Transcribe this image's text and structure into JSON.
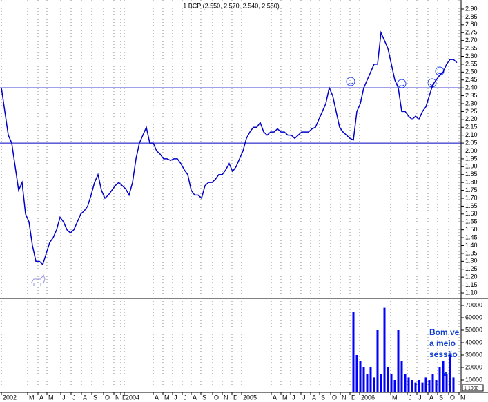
{
  "chart_data": {
    "type": "line",
    "title": "1 BCP (2.550, 2.570, 2.540, 2.550)",
    "series": [
      {
        "name": "BCP",
        "color": "#0000c8",
        "values": [
          2.4,
          2.25,
          2.1,
          2.05,
          1.9,
          1.75,
          1.8,
          1.6,
          1.55,
          1.4,
          1.3,
          1.3,
          1.28,
          1.35,
          1.42,
          1.45,
          1.5,
          1.58,
          1.55,
          1.5,
          1.48,
          1.5,
          1.55,
          1.6,
          1.62,
          1.65,
          1.72,
          1.8,
          1.85,
          1.75,
          1.7,
          1.72,
          1.75,
          1.78,
          1.8,
          1.78,
          1.76,
          1.72,
          1.8,
          1.95,
          2.05,
          2.1,
          2.15,
          2.05,
          2.05,
          2.0,
          1.98,
          1.95,
          1.95,
          1.94,
          1.95,
          1.95,
          1.92,
          1.88,
          1.85,
          1.75,
          1.72,
          1.72,
          1.7,
          1.78,
          1.8,
          1.8,
          1.82,
          1.85,
          1.85,
          1.88,
          1.92,
          1.87,
          1.9,
          1.95,
          2.0,
          2.08,
          2.12,
          2.15,
          2.15,
          2.18,
          2.12,
          2.1,
          2.12,
          2.12,
          2.14,
          2.12,
          2.12,
          2.1,
          2.1,
          2.08,
          2.1,
          2.12,
          2.12,
          2.12,
          2.14,
          2.15,
          2.2,
          2.25,
          2.3,
          2.4,
          2.35,
          2.25,
          2.15,
          2.12,
          2.1,
          2.08,
          2.07,
          2.25,
          2.3,
          2.4,
          2.45,
          2.5,
          2.55,
          2.55,
          2.75,
          2.7,
          2.65,
          2.55,
          2.45,
          2.4,
          2.25,
          2.25,
          2.22,
          2.2,
          2.22,
          2.2,
          2.25,
          2.28,
          2.35,
          2.42,
          2.45,
          2.48,
          2.5,
          2.55,
          2.58,
          2.58,
          2.56
        ]
      }
    ],
    "volume": {
      "color": "#0000ff",
      "x": [
        102,
        103,
        104,
        105,
        106,
        107,
        108,
        109,
        110,
        111,
        112,
        113,
        114,
        115,
        116,
        117,
        118,
        119,
        120,
        121,
        122,
        123,
        124,
        125,
        126,
        127,
        128,
        129,
        130,
        131
      ],
      "values": [
        65000,
        30000,
        25000,
        20000,
        15000,
        20000,
        12000,
        50000,
        15000,
        68000,
        20000,
        15000,
        10000,
        50000,
        25000,
        15000,
        12000,
        10000,
        8000,
        10000,
        8000,
        12000,
        10000,
        15000,
        10000,
        20000,
        25000,
        15000,
        30000,
        12000
      ],
      "ylim": [
        0,
        75000
      ],
      "yticks": [
        10000,
        20000,
        30000,
        40000,
        50000,
        60000,
        70000
      ],
      "unit_label": "1 1000"
    },
    "xlim": [
      0,
      133
    ],
    "xticks": [
      {
        "value": 0,
        "label": "2002"
      },
      {
        "value": 7.6,
        "label": "M"
      },
      {
        "value": 10.6,
        "label": "A"
      },
      {
        "value": 13.2,
        "label": "M"
      },
      {
        "value": 17.2,
        "label": "J"
      },
      {
        "value": 20.2,
        "label": "J"
      },
      {
        "value": 23.2,
        "label": "A"
      },
      {
        "value": 26.2,
        "label": "S"
      },
      {
        "value": 29.6,
        "label": "O"
      },
      {
        "value": 32.6,
        "label": "N"
      },
      {
        "value": 34.6,
        "label": "D"
      },
      {
        "value": 35.6,
        "label": "2004"
      },
      {
        "value": 44,
        "label": "A"
      },
      {
        "value": 46.8,
        "label": "M"
      },
      {
        "value": 49.6,
        "label": "J"
      },
      {
        "value": 52.4,
        "label": "J"
      },
      {
        "value": 55,
        "label": "A"
      },
      {
        "value": 57.8,
        "label": "S"
      },
      {
        "value": 61.2,
        "label": "O"
      },
      {
        "value": 64,
        "label": "N"
      },
      {
        "value": 66.8,
        "label": "D"
      },
      {
        "value": 69.6,
        "label": "2005"
      },
      {
        "value": 78.2,
        "label": "A"
      },
      {
        "value": 81,
        "label": "M"
      },
      {
        "value": 83.8,
        "label": "J"
      },
      {
        "value": 86.8,
        "label": "J"
      },
      {
        "value": 89.6,
        "label": "A"
      },
      {
        "value": 92.2,
        "label": "S"
      },
      {
        "value": 95.4,
        "label": "O"
      },
      {
        "value": 98.2,
        "label": "N"
      },
      {
        "value": 101,
        "label": "D"
      },
      {
        "value": 103.8,
        "label": "2006"
      },
      {
        "value": 112.8,
        "label": "M"
      },
      {
        "value": 117.6,
        "label": "J"
      },
      {
        "value": 120.4,
        "label": "J"
      },
      {
        "value": 123.6,
        "label": "A"
      },
      {
        "value": 126.4,
        "label": "S"
      },
      {
        "value": 129.6,
        "label": "O"
      },
      {
        "value": 132.6,
        "label": "N"
      }
    ],
    "ylim": [
      1.1,
      2.9
    ],
    "yticks": [
      {
        "value": 2.9,
        "label": "2.90"
      },
      {
        "value": 2.85,
        "label": "2.85"
      },
      {
        "value": 2.8,
        "label": "2.80"
      },
      {
        "value": 2.75,
        "label": "2.75"
      },
      {
        "value": 2.7,
        "label": "2.70"
      },
      {
        "value": 2.65,
        "label": "2.65"
      },
      {
        "value": 2.6,
        "label": "2.60"
      },
      {
        "value": 2.55,
        "label": "2.55"
      },
      {
        "value": 2.5,
        "label": "2.50"
      },
      {
        "value": 2.45,
        "label": "2.45"
      },
      {
        "value": 2.4,
        "label": "2.40"
      },
      {
        "value": 2.35,
        "label": "2.35"
      },
      {
        "value": 2.3,
        "label": "2.30"
      },
      {
        "value": 2.25,
        "label": "2.25"
      },
      {
        "value": 2.2,
        "label": "2.20"
      },
      {
        "value": 2.15,
        "label": "2.15"
      },
      {
        "value": 2.1,
        "label": "2.10"
      },
      {
        "value": 2.05,
        "label": "2.05"
      },
      {
        "value": 2.0,
        "label": "2.00"
      },
      {
        "value": 1.95,
        "label": "1.95"
      },
      {
        "value": 1.9,
        "label": "1.90"
      },
      {
        "value": 1.85,
        "label": "1.85"
      },
      {
        "value": 1.8,
        "label": "1.80"
      },
      {
        "value": 1.75,
        "label": "1.75"
      },
      {
        "value": 1.7,
        "label": "1.70"
      },
      {
        "value": 1.65,
        "label": "1.65"
      },
      {
        "value": 1.6,
        "label": "1.60"
      },
      {
        "value": 1.55,
        "label": "1.55"
      },
      {
        "value": 1.5,
        "label": "1.50"
      },
      {
        "value": 1.45,
        "label": "1.45"
      },
      {
        "value": 1.4,
        "label": "1.40"
      },
      {
        "value": 1.35,
        "label": "1.35"
      },
      {
        "value": 1.3,
        "label": "1.30"
      },
      {
        "value": 1.25,
        "label": "1.25"
      },
      {
        "value": 1.2,
        "label": "1.20"
      },
      {
        "value": 1.15,
        "label": "1.15"
      },
      {
        "value": 1.1,
        "label": "1.10"
      }
    ],
    "hlines": [
      2.4,
      2.05
    ],
    "annotations": [
      "Bom ve",
      "a meio",
      "sessão"
    ],
    "grid": true
  }
}
